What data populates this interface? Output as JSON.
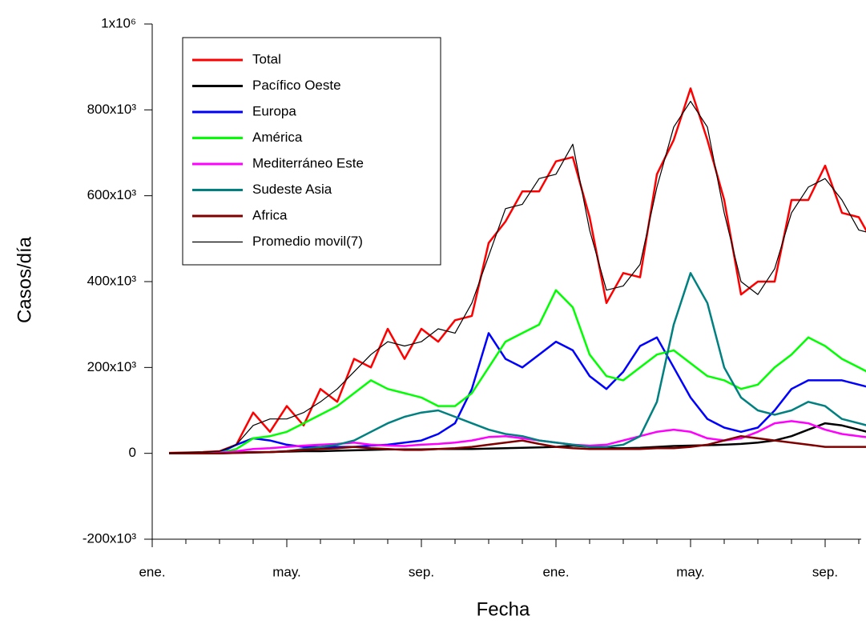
{
  "chart_data": {
    "type": "line",
    "x_label": "Fecha",
    "y_label": "Casos/día",
    "categories": [
      "ene.",
      null,
      null,
      null,
      null,
      null,
      null,
      null,
      "may.",
      null,
      null,
      null,
      null,
      null,
      null,
      null,
      "sep.",
      null,
      null,
      null,
      null,
      null,
      null,
      null,
      "ene.",
      null,
      null,
      null,
      null,
      null,
      null,
      null,
      "may.",
      null,
      null,
      null,
      null,
      null,
      null,
      null,
      "sep.",
      null,
      null,
      null
    ],
    "ylim": [
      -200000,
      1000000
    ],
    "yticks": [
      {
        "value": -200000,
        "label": "-200x10³"
      },
      0,
      {
        "value": 200000,
        "label": "200x10³"
      },
      {
        "value": 400000,
        "label": "400x10³"
      },
      {
        "value": 600000,
        "label": "600x10³"
      },
      {
        "value": 800000,
        "label": "800x10³"
      },
      {
        "value": 1000000,
        "label": "1x10⁶"
      }
    ],
    "legend": "upper left",
    "series": [
      {
        "name": "Total",
        "color": "#ff0000",
        "values": [
          null,
          1000,
          2000,
          3000,
          5000,
          20000,
          95000,
          50000,
          110000,
          65000,
          150000,
          120000,
          220000,
          200000,
          290000,
          220000,
          290000,
          260000,
          310000,
          320000,
          490000,
          540000,
          610000,
          610000,
          680000,
          690000,
          550000,
          350000,
          420000,
          410000,
          650000,
          730000,
          850000,
          730000,
          590000,
          370000,
          400000,
          400000,
          590000,
          590000,
          670000,
          560000,
          550000,
          480000
        ]
      },
      {
        "name": "Pacífico Oeste",
        "color": "#000000",
        "values": [
          null,
          0,
          0,
          0,
          1000,
          2000,
          3000,
          3000,
          4000,
          5000,
          5000,
          6000,
          7000,
          8000,
          9000,
          9000,
          9000,
          10000,
          10000,
          10000,
          11000,
          12000,
          13000,
          14000,
          15000,
          18000,
          15000,
          12000,
          12000,
          13000,
          15000,
          17000,
          18000,
          19000,
          20000,
          22000,
          25000,
          30000,
          40000,
          55000,
          70000,
          65000,
          55000,
          45000
        ]
      },
      {
        "name": "Europa",
        "color": "#0000ff",
        "values": [
          null,
          0,
          0,
          0,
          1000,
          20000,
          35000,
          30000,
          20000,
          15000,
          15000,
          15000,
          15000,
          18000,
          20000,
          25000,
          30000,
          45000,
          70000,
          150000,
          280000,
          220000,
          200000,
          230000,
          260000,
          240000,
          180000,
          150000,
          190000,
          250000,
          270000,
          200000,
          130000,
          80000,
          60000,
          50000,
          60000,
          100000,
          150000,
          170000,
          170000,
          170000,
          160000,
          150000
        ]
      },
      {
        "name": "América",
        "color": "#00ff00",
        "values": [
          null,
          0,
          0,
          0,
          1000,
          10000,
          35000,
          40000,
          50000,
          70000,
          90000,
          110000,
          140000,
          170000,
          150000,
          140000,
          130000,
          110000,
          110000,
          140000,
          200000,
          260000,
          280000,
          300000,
          380000,
          340000,
          230000,
          180000,
          170000,
          200000,
          230000,
          240000,
          210000,
          180000,
          170000,
          150000,
          160000,
          200000,
          230000,
          270000,
          250000,
          220000,
          200000,
          180000
        ]
      },
      {
        "name": "Mediterráneo Este",
        "color": "#ff00ff",
        "values": [
          null,
          0,
          0,
          0,
          1000,
          5000,
          10000,
          12000,
          15000,
          18000,
          20000,
          22000,
          25000,
          20000,
          18000,
          17000,
          20000,
          22000,
          25000,
          30000,
          38000,
          40000,
          35000,
          30000,
          25000,
          20000,
          18000,
          20000,
          30000,
          40000,
          50000,
          55000,
          50000,
          35000,
          30000,
          35000,
          50000,
          70000,
          75000,
          70000,
          55000,
          45000,
          40000,
          35000
        ]
      },
      {
        "name": "Sudeste Asia",
        "color": "#008080",
        "values": [
          null,
          0,
          0,
          0,
          0,
          1000,
          2000,
          3000,
          5000,
          10000,
          15000,
          20000,
          30000,
          50000,
          70000,
          85000,
          95000,
          100000,
          85000,
          70000,
          55000,
          45000,
          40000,
          30000,
          25000,
          20000,
          15000,
          15000,
          20000,
          40000,
          120000,
          300000,
          420000,
          350000,
          200000,
          130000,
          100000,
          90000,
          100000,
          120000,
          110000,
          80000,
          70000,
          60000
        ]
      },
      {
        "name": "Africa",
        "color": "#800000",
        "values": [
          null,
          0,
          0,
          0,
          0,
          1000,
          2000,
          3000,
          5000,
          8000,
          10000,
          12000,
          15000,
          12000,
          10000,
          8000,
          8000,
          10000,
          12000,
          15000,
          20000,
          25000,
          30000,
          22000,
          15000,
          12000,
          10000,
          10000,
          10000,
          10000,
          12000,
          12000,
          15000,
          20000,
          30000,
          40000,
          35000,
          30000,
          25000,
          20000,
          15000,
          15000,
          15000,
          15000
        ]
      },
      {
        "name": "Promedio movil(7)",
        "color": "#000000",
        "values": [
          null,
          1000,
          2000,
          3000,
          5000,
          20000,
          65000,
          80000,
          80000,
          95000,
          120000,
          150000,
          190000,
          230000,
          260000,
          250000,
          260000,
          290000,
          280000,
          350000,
          460000,
          570000,
          580000,
          640000,
          650000,
          720000,
          520000,
          380000,
          390000,
          440000,
          620000,
          760000,
          820000,
          760000,
          560000,
          400000,
          370000,
          430000,
          560000,
          620000,
          640000,
          590000,
          520000,
          510000
        ]
      }
    ]
  }
}
